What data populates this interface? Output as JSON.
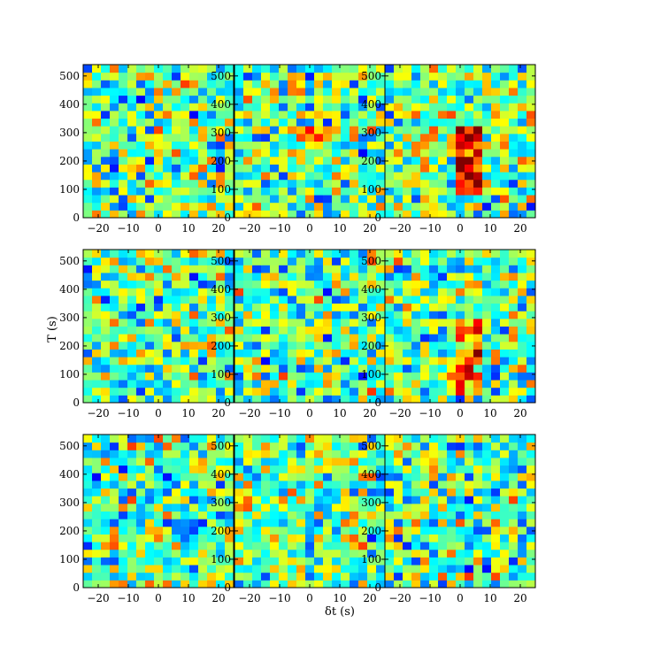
{
  "chart_data": {
    "type": "heatmap",
    "layout": "3x3 grid of panels",
    "colormap": "jet",
    "xlabel": "δt (s)",
    "ylabel": "T (s)",
    "xlim": [
      -25,
      25
    ],
    "ylim": [
      0,
      540
    ],
    "xticks": [
      -20,
      -10,
      0,
      10,
      20
    ],
    "yticks": [
      0,
      100,
      200,
      300,
      400,
      500
    ],
    "xtick_labels": [
      "−20",
      "−10",
      "0",
      "10",
      "20"
    ],
    "ytick_labels": [
      "0",
      "100",
      "200",
      "300",
      "400",
      "500"
    ],
    "grid": false,
    "colorbar": false,
    "cell_grid": {
      "columns": 17,
      "rows": 20,
      "x_bin_width_s": 3,
      "y_bin_height_s": 27
    },
    "colors": {
      "deep_blue": "#00007f",
      "blue": "#0040ff",
      "cyan": "#33ffe0",
      "green": "#7fff7f",
      "yellow": "#ffff00",
      "orange": "#ff8000",
      "red": "#e00000",
      "dark_red": "#7f0000"
    },
    "panels": [
      {
        "row": 1,
        "col": 1,
        "peak": "diffuse",
        "value_range": [
          0,
          1
        ]
      },
      {
        "row": 1,
        "col": 2,
        "peak": "weak ridge near δt = 0, T ≈ 300 s",
        "value_range": [
          0,
          1
        ]
      },
      {
        "row": 1,
        "col": 3,
        "peak": "strong ridge near δt ≈ 0–5 s, T ≈ 100–320 s",
        "value_range": [
          0,
          1
        ]
      },
      {
        "row": 2,
        "col": 1,
        "peak": "diffuse",
        "value_range": [
          0,
          1
        ]
      },
      {
        "row": 2,
        "col": 2,
        "peak": "diffuse",
        "value_range": [
          0,
          1
        ]
      },
      {
        "row": 2,
        "col": 3,
        "peak": "ridge near δt ≈ 0–5 s, T ≈ 40–300 s",
        "value_range": [
          0,
          1
        ]
      },
      {
        "row": 3,
        "col": 1,
        "peak": "diffuse",
        "value_range": [
          0,
          1
        ]
      },
      {
        "row": 3,
        "col": 2,
        "peak": "diffuse",
        "value_range": [
          0,
          1
        ]
      },
      {
        "row": 3,
        "col": 3,
        "peak": "diffuse",
        "value_range": [
          0,
          1
        ]
      }
    ]
  }
}
